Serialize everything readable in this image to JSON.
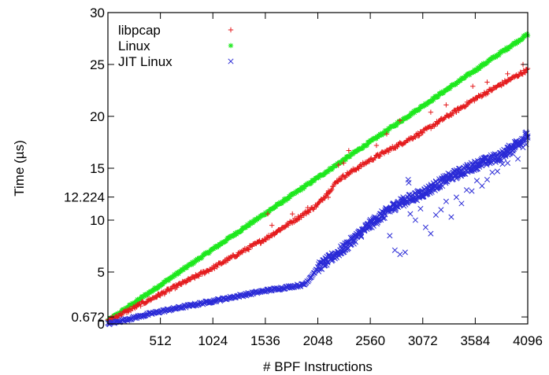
{
  "chart_data": {
    "type": "scatter",
    "title": "",
    "xlabel": "# BPF Instructions",
    "ylabel": "Time (µs)",
    "xlim": [
      0,
      4096
    ],
    "ylim": [
      0,
      30
    ],
    "x_ticks": [
      "512",
      "1024",
      "1536",
      "2048",
      "2560",
      "3072",
      "3584",
      "4096"
    ],
    "y_ticks": [
      "0",
      "0.672",
      "5",
      "10",
      "12.224",
      "15",
      "20",
      "25",
      "30"
    ],
    "grid": false,
    "legend_position": "top-left",
    "series": [
      {
        "name": "libpcap",
        "color": "#e41a1c",
        "marker": "+",
        "trend": [
          [
            0,
            0.3
          ],
          [
            1024,
            5.4
          ],
          [
            1536,
            8.2
          ],
          [
            1900,
            10.5
          ],
          [
            2048,
            11.5
          ],
          [
            2250,
            13.9
          ],
          [
            2560,
            15.8
          ],
          [
            3072,
            18.5
          ],
          [
            3584,
            21.7
          ],
          [
            4096,
            24.5
          ]
        ],
        "outliers": [
          [
            1560,
            10.6
          ],
          [
            1600,
            9.5
          ],
          [
            1650,
            8.9
          ],
          [
            1800,
            10.6
          ],
          [
            1950,
            11.2
          ],
          [
            2130,
            12.5
          ],
          [
            2150,
            12.2
          ],
          [
            2250,
            15.3
          ],
          [
            2300,
            15.5
          ],
          [
            2350,
            16.7
          ],
          [
            2620,
            17.2
          ],
          [
            2720,
            18.3
          ],
          [
            2850,
            19.6
          ],
          [
            3150,
            20.4
          ],
          [
            3300,
            21.1
          ],
          [
            3560,
            22.9
          ],
          [
            3700,
            23.3
          ],
          [
            3900,
            24.1
          ],
          [
            4050,
            25.0
          ]
        ]
      },
      {
        "name": "Linux",
        "color": "#1ee81e",
        "marker": "*",
        "trend": [
          [
            0,
            0.3
          ],
          [
            4096,
            27.9
          ]
        ],
        "outliers": []
      },
      {
        "name": "JIT Linux",
        "color": "#2a2ad6",
        "marker": "x",
        "trend": [
          [
            0,
            0.0
          ],
          [
            512,
            1.2
          ],
          [
            1024,
            2.2
          ],
          [
            1536,
            3.2
          ],
          [
            1920,
            3.8
          ],
          [
            2048,
            5.4
          ],
          [
            2304,
            7.3
          ],
          [
            2560,
            9.6
          ],
          [
            2816,
            11.5
          ],
          [
            3072,
            12.6
          ],
          [
            3328,
            14.1
          ],
          [
            3584,
            15.3
          ],
          [
            3840,
            16.2
          ],
          [
            4096,
            18.2
          ]
        ],
        "outliers": [
          [
            2700,
            10.2
          ],
          [
            2750,
            8.5
          ],
          [
            2800,
            7.1
          ],
          [
            2850,
            6.7
          ],
          [
            2900,
            6.9
          ],
          [
            2930,
            13.9
          ],
          [
            2935,
            13.6
          ],
          [
            2950,
            10.6
          ],
          [
            3000,
            10.0
          ],
          [
            3050,
            11.1
          ],
          [
            3100,
            9.3
          ],
          [
            3150,
            8.7
          ],
          [
            3200,
            10.5
          ],
          [
            3250,
            11.0
          ],
          [
            3300,
            11.8
          ],
          [
            3350,
            10.3
          ],
          [
            3400,
            12.2
          ],
          [
            3450,
            11.6
          ],
          [
            3500,
            12.9
          ],
          [
            3550,
            12.8
          ],
          [
            3600,
            13.8
          ],
          [
            3650,
            13.3
          ],
          [
            3700,
            13.9
          ],
          [
            3750,
            14.6
          ],
          [
            3800,
            14.7
          ],
          [
            3850,
            15.4
          ],
          [
            3900,
            15.5
          ],
          [
            3950,
            16.4
          ],
          [
            4000,
            15.9
          ],
          [
            4050,
            17.0
          ],
          [
            4080,
            17.3
          ]
        ]
      }
    ]
  }
}
